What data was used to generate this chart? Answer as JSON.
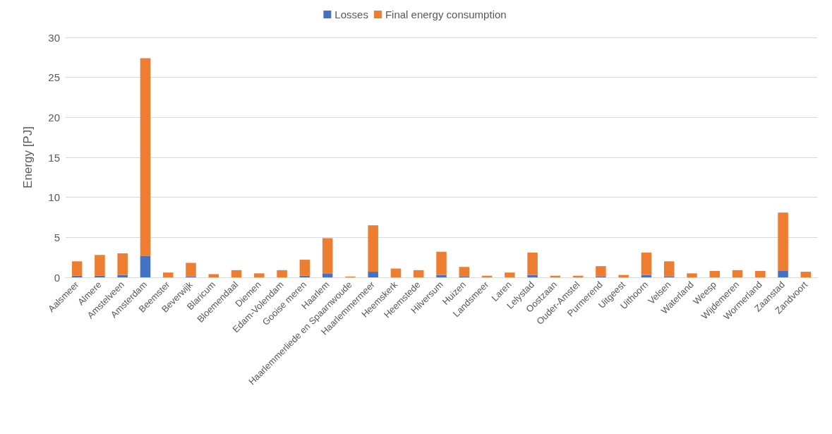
{
  "chart_data": {
    "type": "bar",
    "stacked": true,
    "ylabel": "Energy [PJ]",
    "legend": "top",
    "grid": "y",
    "ylim": [
      0,
      30
    ],
    "yticks": [
      0,
      5,
      10,
      15,
      20,
      25,
      30
    ],
    "categories": [
      "Aalsmeer",
      "Almere",
      "Amstelveen",
      "Amsterdam",
      "Beemster",
      "Beverwijk",
      "Blaricum",
      "Bloemendaal",
      "Diemen",
      "Edam-Volendam",
      "Gooise meren",
      "Haarlem",
      "Haarlemmerliede en Spaarnwoude",
      "Haarlemmermeer",
      "Heemskerk",
      "Heemstede",
      "Hilversum",
      "Huizen",
      "Landsmeer",
      "Laren",
      "Lelystad",
      "Oostzaan",
      "Ouder-Amstel",
      "Purmerend",
      "Uitgeest",
      "Uithoorn",
      "Velsen",
      "Waterland",
      "Weesp",
      "Wijdemeren",
      "Wormerland",
      "Zaanstad",
      "Zandvoort"
    ],
    "series": [
      {
        "name": "Losses",
        "color": "#4472c4",
        "values": [
          0.2,
          0.2,
          0.3,
          2.7,
          0,
          0.1,
          0,
          0,
          0,
          0,
          0.2,
          0.5,
          0,
          0.7,
          0,
          0,
          0.3,
          0.1,
          0,
          0,
          0.3,
          0,
          0,
          0.1,
          0,
          0.3,
          0.1,
          0,
          0,
          0,
          0,
          0.8,
          0
        ]
      },
      {
        "name": "Final energy consumption",
        "color": "#ed7d31",
        "values": [
          1.8,
          2.6,
          2.7,
          24.7,
          0.6,
          1.7,
          0.4,
          0.9,
          0.5,
          0.9,
          2.0,
          4.4,
          0.1,
          5.8,
          1.1,
          0.9,
          2.9,
          1.2,
          0.2,
          0.6,
          2.8,
          0.2,
          0.2,
          1.3,
          0.3,
          2.8,
          1.9,
          0.5,
          0.8,
          0.9,
          0.8,
          7.3,
          0.7
        ]
      }
    ]
  }
}
